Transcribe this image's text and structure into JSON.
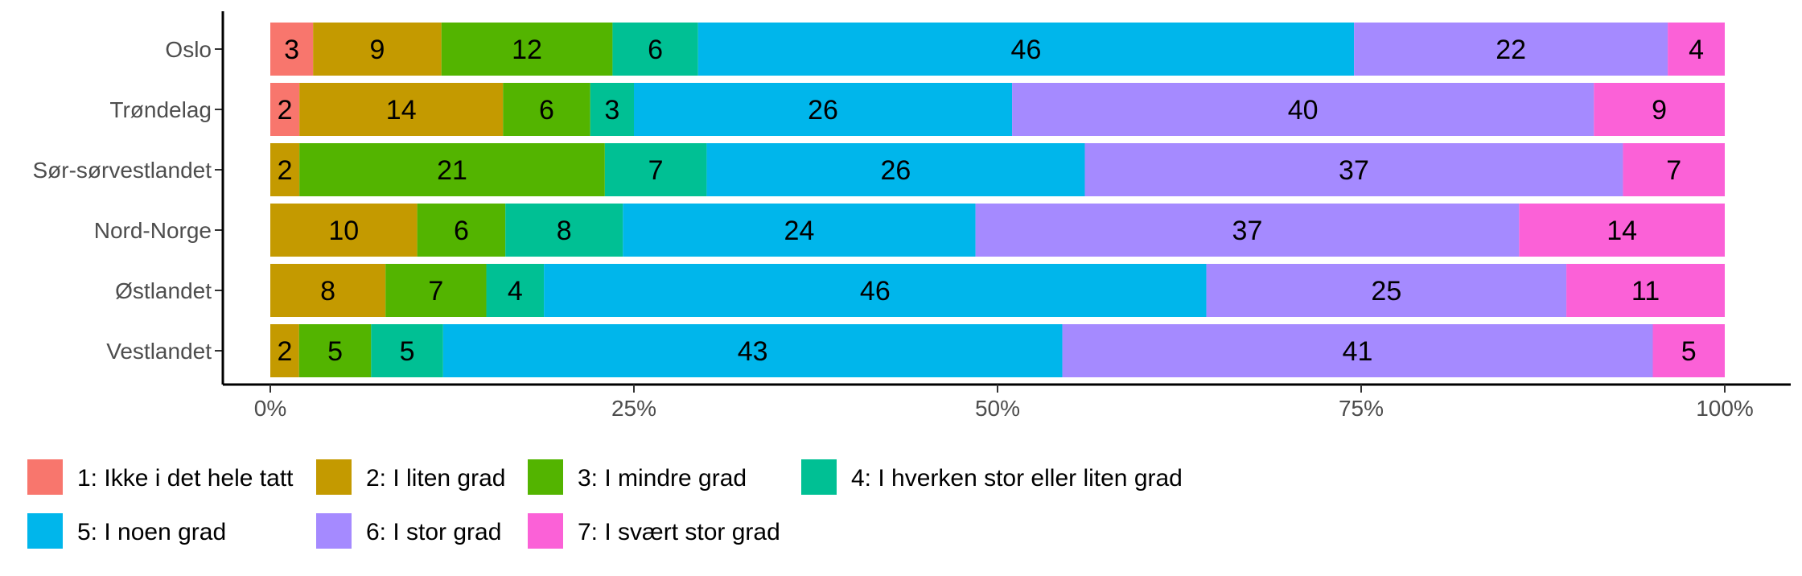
{
  "chart_data": {
    "type": "bar",
    "orientation": "horizontal",
    "stacked": true,
    "normalized": true,
    "title": "",
    "xlabel": "",
    "ylabel": "",
    "xlim": [
      0,
      100
    ],
    "x_tick_labels": [
      "0%",
      "25%",
      "50%",
      "75%",
      "100%"
    ],
    "x_tick_values": [
      0,
      25,
      50,
      75,
      100
    ],
    "grid": false,
    "legend_position": "bottom",
    "categories": [
      "Oslo",
      "Trøndelag",
      "Sør-sørvestlandet",
      "Nord-Norge",
      "Østlandet",
      "Vestlandet"
    ],
    "series": [
      {
        "name": "1: Ikke i det hele tatt",
        "color": "#F8766D",
        "values": [
          3,
          2,
          0,
          0,
          0,
          0
        ]
      },
      {
        "name": "2: I liten grad",
        "color": "#C49A00",
        "values": [
          9,
          14,
          2,
          10,
          8,
          2
        ]
      },
      {
        "name": "3: I mindre grad",
        "color": "#53B400",
        "values": [
          12,
          6,
          21,
          6,
          7,
          5
        ]
      },
      {
        "name": "4: I hverken stor eller liten grad",
        "color": "#00C094",
        "values": [
          6,
          3,
          7,
          8,
          4,
          5
        ]
      },
      {
        "name": "5: I noen grad",
        "color": "#00B6EB",
        "values": [
          46,
          26,
          26,
          24,
          46,
          43
        ]
      },
      {
        "name": "6: I stor grad",
        "color": "#A58AFF",
        "values": [
          22,
          40,
          37,
          37,
          25,
          41
        ]
      },
      {
        "name": "7: I svært stor grad",
        "color": "#FB61D7",
        "values": [
          4,
          9,
          7,
          14,
          11,
          5
        ]
      }
    ]
  }
}
